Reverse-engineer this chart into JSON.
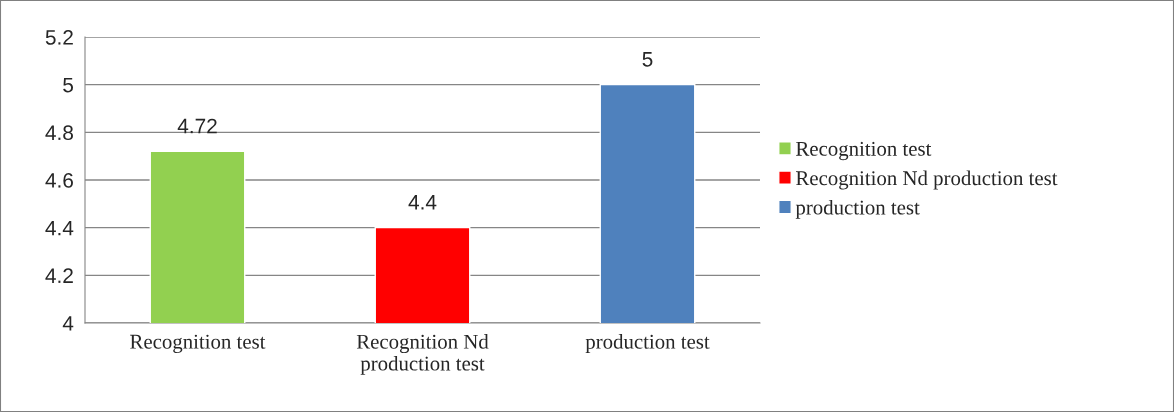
{
  "chart_data": {
    "type": "bar",
    "categories": [
      "Recognition test",
      "Recognition Nd\nproduction test",
      "production test"
    ],
    "series": [
      {
        "name": "Recognition test",
        "color": "#92d050",
        "values": [
          4.72,
          null,
          null
        ]
      },
      {
        "name": "Recognition Nd production test",
        "color": "#ff0000",
        "values": [
          null,
          4.4,
          null
        ]
      },
      {
        "name": "production test",
        "color": "#4f81bd",
        "values": [
          null,
          null,
          5
        ]
      }
    ],
    "ylim": [
      4,
      5.2
    ],
    "yticks": [
      4,
      4.2,
      4.4,
      4.6,
      4.8,
      5,
      5.2
    ],
    "grid": "y",
    "legend": "right",
    "data_labels": true
  }
}
